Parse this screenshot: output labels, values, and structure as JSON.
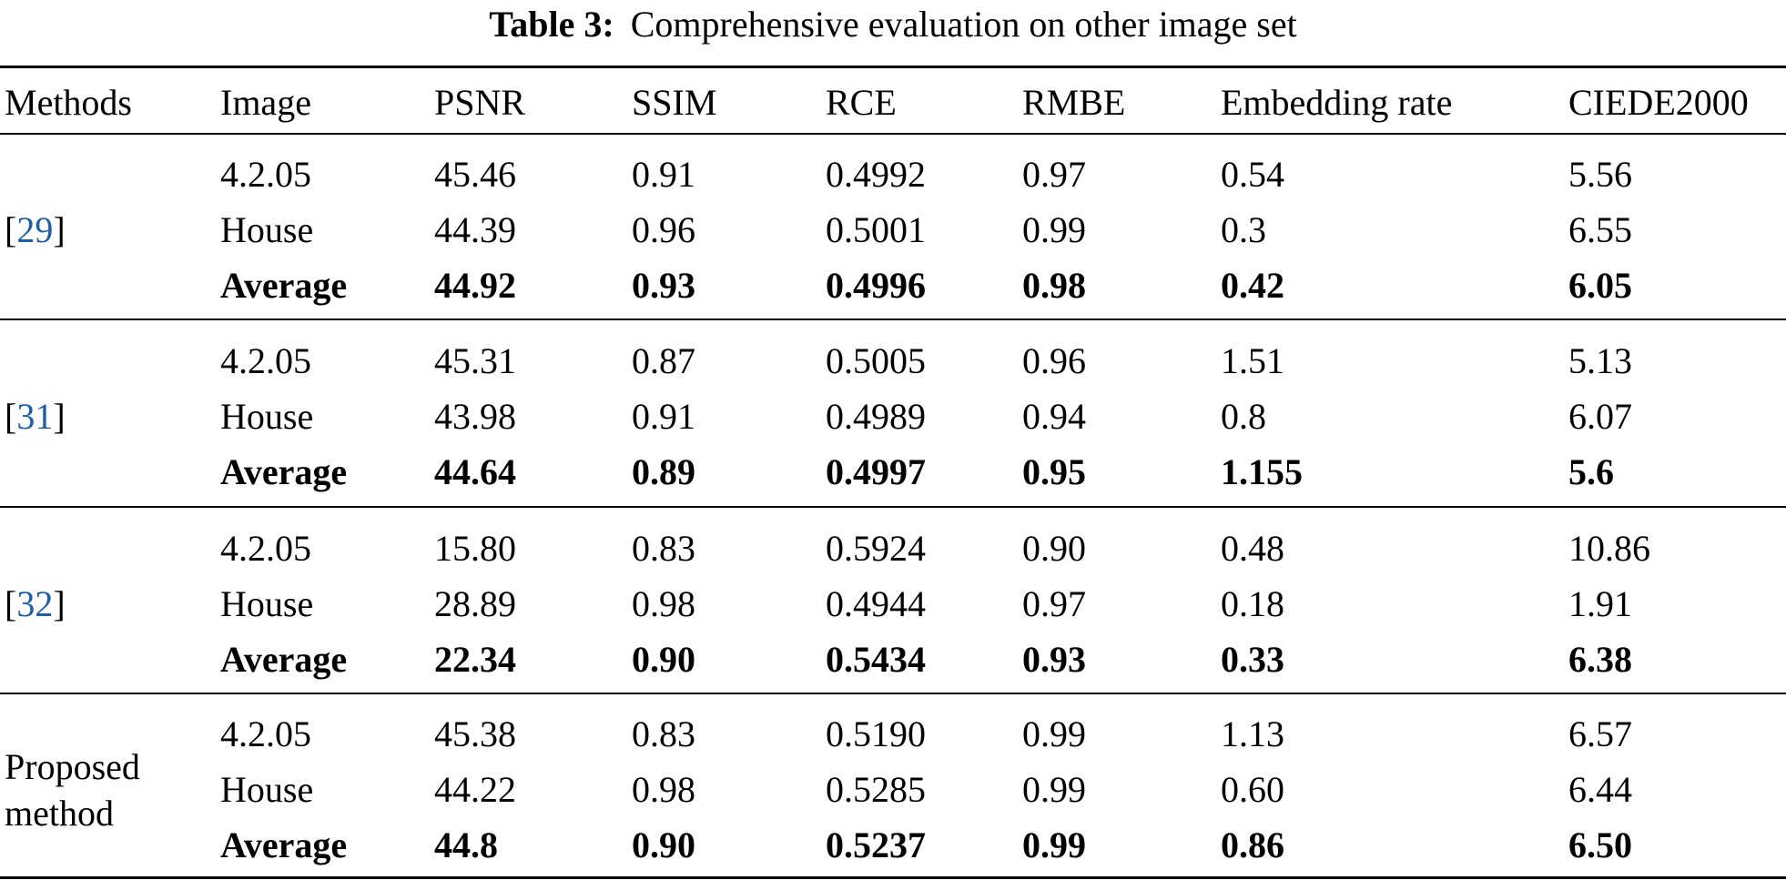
{
  "caption": {
    "label": "Table 3:",
    "text": "Comprehensive evaluation on other image set"
  },
  "headers": {
    "methods": "Methods",
    "image": "Image",
    "psnr": "PSNR",
    "ssim": "SSIM",
    "rce": "RCE",
    "rmbe": "RMBE",
    "embedding_rate": "Embedding rate",
    "ciede2000": "CIEDE2000"
  },
  "groups": [
    {
      "method": {
        "open": "[",
        "ref": "29",
        "close": "]"
      },
      "rows": [
        {
          "image": "4.2.05",
          "psnr": "45.46",
          "ssim": "0.91",
          "rce": "0.4992",
          "rmbe": "0.97",
          "embedding_rate": "0.54",
          "ciede2000": "5.56"
        },
        {
          "image": "House",
          "psnr": "44.39",
          "ssim": "0.96",
          "rce": "0.5001",
          "rmbe": "0.99",
          "embedding_rate": "0.3",
          "ciede2000": "6.55"
        },
        {
          "image": "Average",
          "psnr": "44.92",
          "ssim": "0.93",
          "rce": "0.4996",
          "rmbe": "0.98",
          "embedding_rate": "0.42",
          "ciede2000": "6.05"
        }
      ]
    },
    {
      "method": {
        "open": "[",
        "ref": "31",
        "close": "]"
      },
      "rows": [
        {
          "image": "4.2.05",
          "psnr": "45.31",
          "ssim": "0.87",
          "rce": "0.5005",
          "rmbe": "0.96",
          "embedding_rate": "1.51",
          "ciede2000": "5.13"
        },
        {
          "image": "House",
          "psnr": "43.98",
          "ssim": "0.91",
          "rce": "0.4989",
          "rmbe": "0.94",
          "embedding_rate": "0.8",
          "ciede2000": "6.07"
        },
        {
          "image": "Average",
          "psnr": "44.64",
          "ssim": "0.89",
          "rce": "0.4997",
          "rmbe": "0.95",
          "embedding_rate": "1.155",
          "ciede2000": "5.6"
        }
      ]
    },
    {
      "method": {
        "open": "[",
        "ref": "32",
        "close": "]"
      },
      "rows": [
        {
          "image": "4.2.05",
          "psnr": "15.80",
          "ssim": "0.83",
          "rce": "0.5924",
          "rmbe": "0.90",
          "embedding_rate": "0.48",
          "ciede2000": "10.86"
        },
        {
          "image": "House",
          "psnr": "28.89",
          "ssim": "0.98",
          "rce": "0.4944",
          "rmbe": "0.97",
          "embedding_rate": "0.18",
          "ciede2000": "1.91"
        },
        {
          "image": "Average",
          "psnr": "22.34",
          "ssim": "0.90",
          "rce": "0.5434",
          "rmbe": "0.93",
          "embedding_rate": "0.33",
          "ciede2000": "6.38"
        }
      ]
    },
    {
      "method": {
        "line1": "Proposed",
        "line2": "method"
      },
      "rows": [
        {
          "image": "4.2.05",
          "psnr": "45.38",
          "ssim": "0.83",
          "rce": "0.5190",
          "rmbe": "0.99",
          "embedding_rate": "1.13",
          "ciede2000": "6.57"
        },
        {
          "image": "House",
          "psnr": "44.22",
          "ssim": "0.98",
          "rce": "0.5285",
          "rmbe": "0.99",
          "embedding_rate": "0.60",
          "ciede2000": "6.44"
        },
        {
          "image": "Average",
          "psnr": "44.8",
          "ssim": "0.90",
          "rce": "0.5237",
          "rmbe": "0.99",
          "embedding_rate": "0.86",
          "ciede2000": "6.50"
        }
      ]
    }
  ],
  "colors": {
    "text": "#000000",
    "reference_link": "#1f5fa8",
    "background": "#ffffff"
  }
}
